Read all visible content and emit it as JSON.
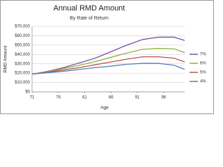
{
  "chart_data": {
    "type": "line",
    "title": "Annual RMD Amount",
    "subtitle": "By Rate of Return",
    "x_label": "Age",
    "y_label": "RMD Amount",
    "x": [
      71,
      74,
      77,
      80,
      83,
      86,
      89,
      92,
      95,
      98,
      100
    ],
    "series": [
      {
        "name": "7%",
        "color": "#7b4fa8",
        "values": [
          19000,
          22000,
          26000,
          31000,
          36000,
          43000,
          50000,
          56000,
          58500,
          58500,
          55000
        ]
      },
      {
        "name": "6%",
        "color": "#8db43e",
        "values": [
          19000,
          21500,
          25000,
          28500,
          32500,
          37000,
          41500,
          45500,
          46500,
          46000,
          42000
        ]
      },
      {
        "name": "5%",
        "color": "#c0504d",
        "values": [
          19000,
          21000,
          23500,
          26000,
          29000,
          32000,
          35000,
          37500,
          37500,
          36000,
          32000
        ]
      },
      {
        "name": "4%",
        "color": "#4f81bd",
        "values": [
          19000,
          20500,
          22000,
          24000,
          26000,
          27500,
          29500,
          30500,
          30500,
          28500,
          24000
        ]
      }
    ],
    "xlim": [
      71,
      100
    ],
    "xticks": [
      71,
      76,
      81,
      86,
      91,
      96
    ],
    "ylim": [
      0,
      70000
    ],
    "yticks": [
      {
        "value": 0,
        "label": "$0"
      },
      {
        "value": 10000,
        "label": "$10,000"
      },
      {
        "value": 20000,
        "label": "$20,000"
      },
      {
        "value": 30000,
        "label": "$30,000"
      },
      {
        "value": 40000,
        "label": "$40,000"
      },
      {
        "value": 50000,
        "label": "$50,000"
      },
      {
        "value": 60000,
        "label": "$60,000"
      },
      {
        "value": 70000,
        "label": "$70,000"
      }
    ],
    "grid": true,
    "legend": "right"
  }
}
